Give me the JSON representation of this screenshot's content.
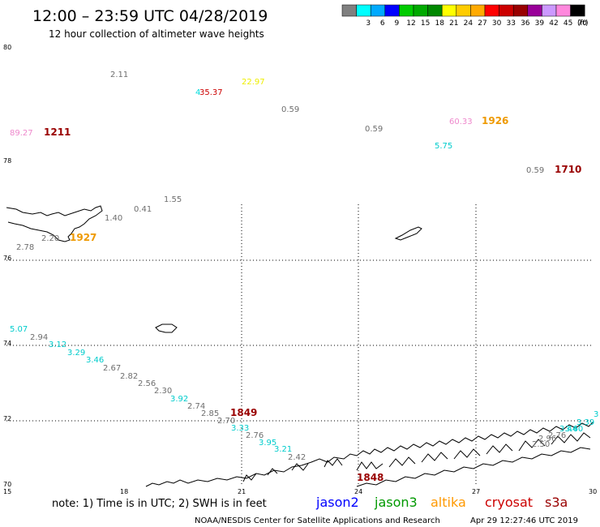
{
  "header": {
    "title": "12:00 – 23:59 UTC 04/28/2019",
    "subtitle": "12 hour collection of altimeter wave heights"
  },
  "color_scale": {
    "unit": "(ft)",
    "swatches": [
      {
        "color": "#808080",
        "label": ""
      },
      {
        "color": "#00ffff",
        "label": "3"
      },
      {
        "color": "#00aaff",
        "label": "6"
      },
      {
        "color": "#0000ff",
        "label": "9"
      },
      {
        "color": "#00cc00",
        "label": "12"
      },
      {
        "color": "#00aa00",
        "label": "15"
      },
      {
        "color": "#008800",
        "label": "18"
      },
      {
        "color": "#ffff00",
        "label": "21"
      },
      {
        "color": "#ffcc00",
        "label": "24"
      },
      {
        "color": "#ffaa00",
        "label": "27"
      },
      {
        "color": "#ff0000",
        "label": "30"
      },
      {
        "color": "#cc0000",
        "label": "33"
      },
      {
        "color": "#990000",
        "label": "36"
      },
      {
        "color": "#990099",
        "label": "39"
      },
      {
        "color": "#cc99ff",
        "label": "42"
      },
      {
        "color": "#ff88dd",
        "label": "45"
      },
      {
        "color": "#000000",
        "label": "70"
      }
    ]
  },
  "map": {
    "lat_labels": [
      "80",
      "78",
      "76",
      "74",
      "72",
      "70"
    ],
    "lon_labels": [
      "15",
      "18",
      "21",
      "24",
      "27",
      "30"
    ],
    "observations": [
      {
        "text": "2.11",
        "color": "#6e6e6e"
      },
      {
        "text": "4",
        "color": "#00dddd"
      },
      {
        "text": "35.37",
        "color": "#cc0000"
      },
      {
        "text": "22.97",
        "color": "#eeee00"
      },
      {
        "text": "0.59",
        "color": "#6e6e6e"
      },
      {
        "text": "89.27",
        "color": "#ee88cc"
      },
      {
        "text": "1211",
        "color": "#990000"
      },
      {
        "text": "60.33",
        "color": "#ee88cc"
      },
      {
        "text": "1926",
        "color": "#ee9900"
      },
      {
        "text": "0.59",
        "color": "#6e6e6e"
      },
      {
        "text": "5.75",
        "color": "#00cccc"
      },
      {
        "text": "0.59",
        "color": "#6e6e6e"
      },
      {
        "text": "1710",
        "color": "#990000"
      },
      {
        "text": "1.55",
        "color": "#6e6e6e"
      },
      {
        "text": "0.41",
        "color": "#6e6e6e"
      },
      {
        "text": "1.40",
        "color": "#6e6e6e"
      },
      {
        "text": "2.20",
        "color": "#6e6e6e"
      },
      {
        "text": "1927",
        "color": "#ee9900"
      },
      {
        "text": "2.78",
        "color": "#6e6e6e"
      },
      {
        "text": "5.07",
        "color": "#00cccc"
      },
      {
        "text": "2.94",
        "color": "#6e6e6e"
      },
      {
        "text": "3.12",
        "color": "#00cccc"
      },
      {
        "text": "3.29",
        "color": "#00cccc"
      },
      {
        "text": "3.46",
        "color": "#00cccc"
      },
      {
        "text": "2.67",
        "color": "#6e6e6e"
      },
      {
        "text": "2.82",
        "color": "#6e6e6e"
      },
      {
        "text": "2.56",
        "color": "#6e6e6e"
      },
      {
        "text": "2.30",
        "color": "#6e6e6e"
      },
      {
        "text": "3.92",
        "color": "#00cccc"
      },
      {
        "text": "2.74",
        "color": "#6e6e6e"
      },
      {
        "text": "2.85",
        "color": "#6e6e6e"
      },
      {
        "text": "1849",
        "color": "#990000"
      },
      {
        "text": "2.70",
        "color": "#6e6e6e"
      },
      {
        "text": "3.33",
        "color": "#00cccc"
      },
      {
        "text": "2.76",
        "color": "#6e6e6e"
      },
      {
        "text": "3.95",
        "color": "#00cccc"
      },
      {
        "text": "3.21",
        "color": "#00cccc"
      },
      {
        "text": "2.42",
        "color": "#6e6e6e"
      },
      {
        "text": "1848",
        "color": "#990000"
      },
      {
        "text": "3",
        "color": "#00cccc"
      },
      {
        "text": "3.39",
        "color": "#00cccc"
      },
      {
        "text": "3.60",
        "color": "#00cccc"
      },
      {
        "text": "3.44",
        "color": "#00cccc"
      },
      {
        "text": "2.76",
        "color": "#6e6e6e"
      },
      {
        "text": "2.96",
        "color": "#6e6e6e"
      },
      {
        "text": "2.50",
        "color": "#6e6e6e"
      }
    ]
  },
  "footer": {
    "note": "note: 1) Time is in UTC; 2) SWH is in feet",
    "satellites": [
      {
        "name": "jason2",
        "color": "#0000ff"
      },
      {
        "name": "jason3",
        "color": "#009900"
      },
      {
        "name": "altika",
        "color": "#ff9900"
      },
      {
        "name": "cryosat",
        "color": "#cc0000"
      },
      {
        "name": "s3a",
        "color": "#990000"
      }
    ],
    "credit": "NOAA/NESDIS Center for Satellite Applications and Research",
    "timestamp": "Apr 29 12:27:46 UTC 2019"
  }
}
